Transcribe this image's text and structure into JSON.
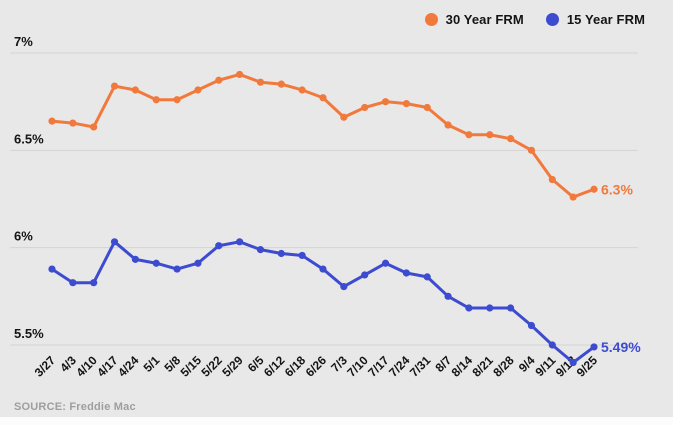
{
  "colors": {
    "background": "#E8E8E8",
    "gridline": "#D3D3D3",
    "axis_text": "#141414",
    "source_text": "#9E9E9E",
    "orange": "#F1793C",
    "blue": "#3D4BD0"
  },
  "legend": {
    "items": [
      {
        "label": "30 Year FRM",
        "color": "#F1793C"
      },
      {
        "label": "15 Year FRM",
        "color": "#3D4BD0"
      }
    ]
  },
  "source": {
    "label": "SOURCE: Freddie Mac"
  },
  "chart_data": {
    "type": "line",
    "title": "",
    "xlabel": "",
    "ylabel": "",
    "grid": true,
    "legend_position": "top-right",
    "ylim": [
      5.35,
      7.05
    ],
    "yticks": [
      {
        "label": "7%",
        "value": 7.0
      },
      {
        "label": "6.5%",
        "value": 6.5
      },
      {
        "label": "6%",
        "value": 6.0
      },
      {
        "label": "5.5%",
        "value": 5.5
      }
    ],
    "categories": [
      "3/27",
      "4/3",
      "4/10",
      "4/17",
      "4/24",
      "5/1",
      "5/8",
      "5/15",
      "5/22",
      "5/29",
      "6/5",
      "6/12",
      "6/18",
      "6/26",
      "7/3",
      "7/10",
      "7/17",
      "7/24",
      "7/31",
      "8/7",
      "8/14",
      "8/21",
      "8/28",
      "9/4",
      "9/11",
      "9/18",
      "9/25"
    ],
    "series": [
      {
        "name": "30 Year FRM",
        "color": "#F1793C",
        "end_label": "6.3%",
        "values": [
          6.65,
          6.64,
          6.62,
          6.83,
          6.81,
          6.76,
          6.76,
          6.81,
          6.86,
          6.89,
          6.85,
          6.84,
          6.81,
          6.77,
          6.67,
          6.72,
          6.75,
          6.74,
          6.72,
          6.63,
          6.58,
          6.58,
          6.56,
          6.5,
          6.35,
          6.26,
          6.3
        ]
      },
      {
        "name": "15 Year FRM",
        "color": "#3D4BD0",
        "end_label": "5.49%",
        "values": [
          5.89,
          5.82,
          5.82,
          6.03,
          5.94,
          5.92,
          5.89,
          5.92,
          6.01,
          6.03,
          5.99,
          5.97,
          5.96,
          5.89,
          5.8,
          5.86,
          5.92,
          5.87,
          5.85,
          5.75,
          5.69,
          5.69,
          5.69,
          5.6,
          5.5,
          5.41,
          5.49
        ]
      }
    ]
  }
}
